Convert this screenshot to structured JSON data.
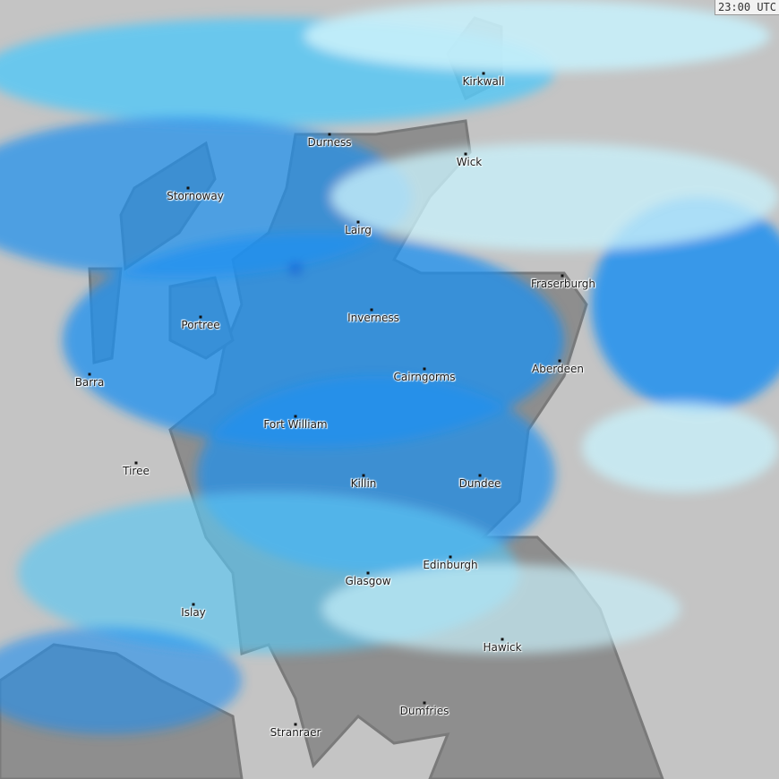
{
  "timestamp": "23:00 UTC",
  "colors": {
    "sea": "#c4c4c4",
    "land": "#8e8e8e",
    "coast": "#7a7a7a",
    "rain_light": "#c8f0fa",
    "rain_moderate": "#5ac8f5",
    "rain_heavy": "#1e90f0",
    "rain_intense": "#1450d2"
  },
  "places": [
    {
      "name": "Kirkwall"
    },
    {
      "name": "Durness"
    },
    {
      "name": "Wick"
    },
    {
      "name": "Stornoway"
    },
    {
      "name": "Lairg"
    },
    {
      "name": "Fraserburgh"
    },
    {
      "name": "Portree"
    },
    {
      "name": "Inverness"
    },
    {
      "name": "Barra"
    },
    {
      "name": "Aberdeen"
    },
    {
      "name": "Cairngorms"
    },
    {
      "name": "Fort William"
    },
    {
      "name": "Tiree"
    },
    {
      "name": "Dundee"
    },
    {
      "name": "Killin"
    },
    {
      "name": "Edinburgh"
    },
    {
      "name": "Glasgow"
    },
    {
      "name": "Islay"
    },
    {
      "name": "Hawick"
    },
    {
      "name": "Dumfries"
    },
    {
      "name": "Stranraer"
    }
  ]
}
